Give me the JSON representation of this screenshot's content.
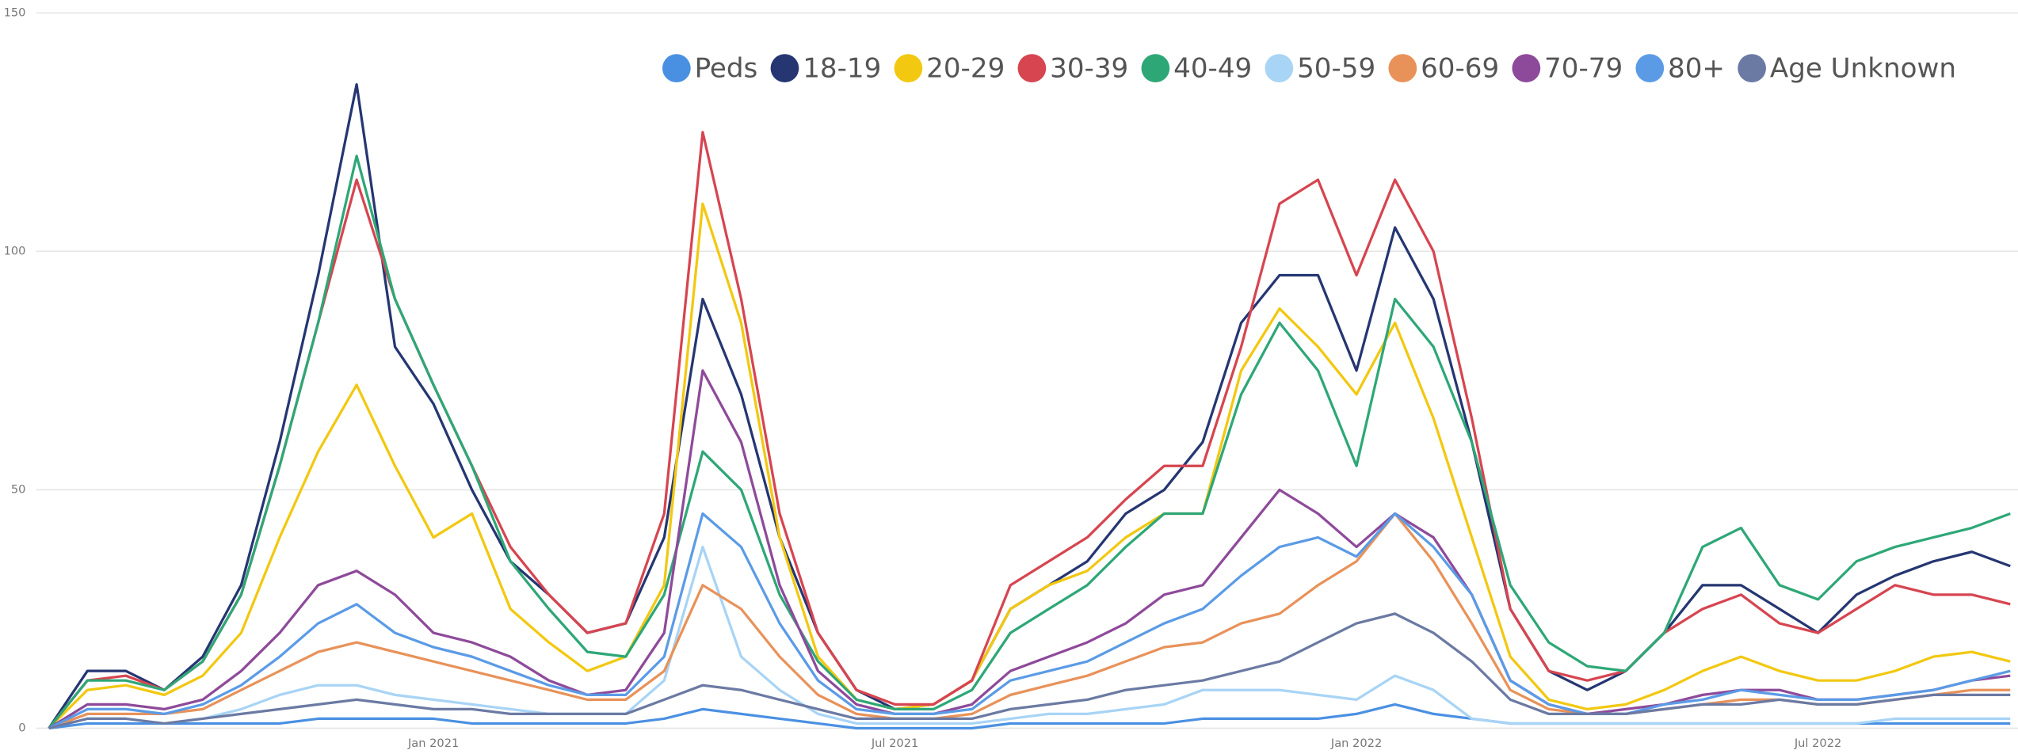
{
  "chart_data": {
    "type": "line",
    "categories": [
      null,
      null,
      null,
      null,
      null,
      null,
      null,
      null,
      null,
      null,
      "Jan 2021",
      null,
      null,
      null,
      null,
      null,
      null,
      null,
      null,
      null,
      null,
      null,
      "Jul 2021",
      null,
      null,
      null,
      null,
      null,
      null,
      null,
      null,
      null,
      null,
      null,
      "Jan 2022",
      null,
      null,
      null,
      null,
      null,
      null,
      null,
      null,
      null,
      null,
      null,
      "Jul 2022",
      null,
      null,
      null,
      null,
      null
    ],
    "ylim": [
      0,
      150
    ],
    "yticks": [
      0,
      50,
      100,
      150
    ],
    "grid": true,
    "legend": "top-right",
    "series": [
      {
        "name": "Peds",
        "color": "#4a90e2",
        "values": [
          0,
          1,
          1,
          1,
          1,
          1,
          1,
          2,
          2,
          2,
          2,
          1,
          1,
          1,
          1,
          1,
          2,
          4,
          3,
          2,
          1,
          0,
          0,
          0,
          0,
          1,
          1,
          1,
          1,
          1,
          2,
          2,
          2,
          2,
          3,
          5,
          3,
          2,
          1,
          1,
          1,
          1,
          1,
          1,
          1,
          1,
          1,
          1,
          1,
          1,
          1,
          1
        ]
      },
      {
        "name": "18-19",
        "color": "#253672",
        "values": [
          0,
          12,
          12,
          8,
          15,
          30,
          60,
          95,
          135,
          80,
          68,
          50,
          35,
          28,
          20,
          22,
          40,
          90,
          70,
          40,
          20,
          8,
          4,
          5,
          10,
          25,
          30,
          35,
          45,
          50,
          60,
          85,
          95,
          95,
          75,
          105,
          90,
          60,
          25,
          12,
          8,
          12,
          20,
          30,
          30,
          25,
          20,
          28,
          32,
          35,
          37,
          34
        ]
      },
      {
        "name": "20-29",
        "color": "#f2c811",
        "values": [
          0,
          8,
          9,
          7,
          11,
          20,
          40,
          58,
          72,
          55,
          40,
          45,
          25,
          18,
          12,
          15,
          30,
          110,
          85,
          40,
          15,
          6,
          4,
          5,
          10,
          25,
          30,
          33,
          40,
          45,
          45,
          75,
          88,
          80,
          70,
          85,
          65,
          40,
          15,
          6,
          4,
          5,
          8,
          12,
          15,
          12,
          10,
          10,
          12,
          15,
          16,
          14
        ]
      },
      {
        "name": "30-39",
        "color": "#d64550",
        "values": [
          0,
          10,
          11,
          8,
          14,
          28,
          55,
          85,
          115,
          90,
          72,
          55,
          38,
          28,
          20,
          22,
          45,
          125,
          90,
          45,
          20,
          8,
          5,
          5,
          10,
          30,
          35,
          40,
          48,
          55,
          55,
          80,
          110,
          115,
          95,
          115,
          100,
          65,
          25,
          12,
          10,
          12,
          20,
          25,
          28,
          22,
          20,
          25,
          30,
          28,
          28,
          26
        ]
      },
      {
        "name": "40-49",
        "color": "#2ea777",
        "values": [
          0,
          10,
          10,
          8,
          14,
          28,
          55,
          85,
          120,
          90,
          72,
          55,
          35,
          25,
          16,
          15,
          28,
          58,
          50,
          28,
          14,
          6,
          4,
          4,
          8,
          20,
          25,
          30,
          38,
          45,
          45,
          70,
          85,
          75,
          55,
          90,
          80,
          60,
          30,
          18,
          13,
          12,
          20,
          38,
          42,
          30,
          27,
          35,
          38,
          40,
          42,
          45
        ]
      },
      {
        "name": "50-59",
        "color": "#a8d4f5",
        "values": [
          0,
          2,
          2,
          1,
          2,
          4,
          7,
          9,
          9,
          7,
          6,
          5,
          4,
          3,
          3,
          3,
          10,
          38,
          15,
          8,
          3,
          1,
          1,
          1,
          1,
          2,
          3,
          3,
          4,
          5,
          8,
          8,
          8,
          7,
          6,
          11,
          8,
          2,
          1,
          1,
          1,
          1,
          1,
          1,
          1,
          1,
          1,
          1,
          2,
          2,
          2,
          2
        ]
      },
      {
        "name": "60-69",
        "color": "#e8925a",
        "values": [
          0,
          3,
          3,
          3,
          4,
          8,
          12,
          16,
          18,
          16,
          14,
          12,
          10,
          8,
          6,
          6,
          12,
          30,
          25,
          15,
          7,
          3,
          2,
          2,
          3,
          7,
          9,
          11,
          14,
          17,
          18,
          22,
          24,
          30,
          35,
          45,
          35,
          22,
          8,
          4,
          3,
          3,
          4,
          5,
          6,
          6,
          5,
          5,
          6,
          7,
          8,
          8
        ]
      },
      {
        "name": "70-79",
        "color": "#8e4a9a",
        "values": [
          0,
          5,
          5,
          4,
          6,
          12,
          20,
          30,
          33,
          28,
          20,
          18,
          15,
          10,
          7,
          8,
          20,
          75,
          60,
          30,
          12,
          5,
          3,
          3,
          5,
          12,
          15,
          18,
          22,
          28,
          30,
          40,
          50,
          45,
          38,
          45,
          40,
          28,
          10,
          5,
          3,
          4,
          5,
          7,
          8,
          8,
          6,
          6,
          7,
          8,
          10,
          11
        ]
      },
      {
        "name": "80+",
        "color": "#5b9be6",
        "values": [
          0,
          4,
          4,
          3,
          5,
          9,
          15,
          22,
          26,
          20,
          17,
          15,
          12,
          9,
          7,
          7,
          15,
          45,
          38,
          22,
          10,
          4,
          3,
          3,
          4,
          10,
          12,
          14,
          18,
          22,
          25,
          32,
          38,
          40,
          36,
          45,
          38,
          28,
          10,
          5,
          3,
          3,
          5,
          6,
          8,
          7,
          6,
          6,
          7,
          8,
          10,
          12
        ]
      },
      {
        "name": "Age Unknown",
        "color": "#6b7aa3",
        "values": [
          0,
          2,
          2,
          1,
          2,
          3,
          4,
          5,
          6,
          5,
          4,
          4,
          3,
          3,
          3,
          3,
          6,
          9,
          8,
          6,
          4,
          2,
          2,
          2,
          2,
          4,
          5,
          6,
          8,
          9,
          10,
          12,
          14,
          18,
          22,
          24,
          20,
          14,
          6,
          3,
          3,
          3,
          4,
          5,
          5,
          6,
          5,
          5,
          6,
          7,
          7,
          7
        ]
      }
    ]
  }
}
